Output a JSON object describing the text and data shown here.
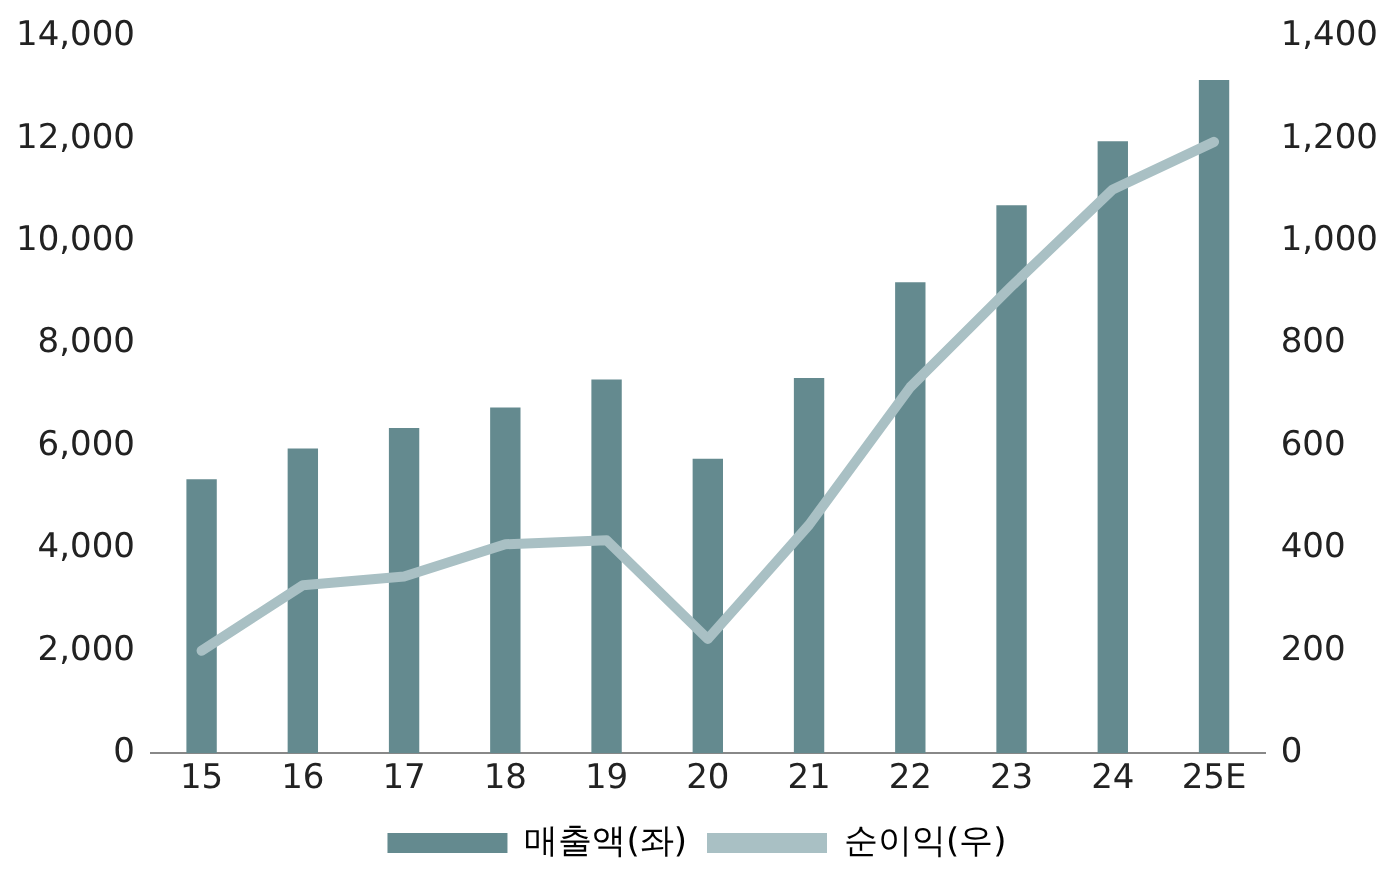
{
  "chart_data": {
    "type": "bar",
    "categories": [
      "15",
      "16",
      "17",
      "18",
      "19",
      "20",
      "21",
      "22",
      "23",
      "24",
      "25E"
    ],
    "series": [
      {
        "name": "매출액(좌)",
        "color": "#648a8f",
        "values": [
          5350,
          5950,
          6350,
          6750,
          7300,
          5750,
          7330,
          9200,
          10700,
          11950,
          13150
        ]
      },
      {
        "name": "순이익(우)",
        "type": "line",
        "axis": "y2",
        "color": "#a9c0c4",
        "values": [
          200,
          328,
          345,
          408,
          416,
          223,
          446,
          715,
          912,
          1101,
          1194
        ]
      }
    ],
    "ylim": [
      0,
      14000
    ],
    "yticks": [
      0,
      {
        "value": 2000,
        "label": "2,000"
      },
      {
        "value": 4000,
        "label": "4,000"
      },
      {
        "value": 6000,
        "label": "6,000"
      },
      {
        "value": 8000,
        "label": "8,000"
      },
      {
        "value": 10000,
        "label": "10,000"
      },
      {
        "value": 12000,
        "label": "12,000"
      },
      {
        "value": 14000,
        "label": "14,000"
      }
    ],
    "y2lim": [
      0,
      1400
    ],
    "y2ticks": [
      0,
      200,
      400,
      600,
      800,
      {
        "value": 1000,
        "label": "1,000"
      },
      {
        "value": 1200,
        "label": "1,200"
      },
      {
        "value": 1400,
        "label": "1,400"
      }
    ],
    "grid": false,
    "legend": "bottom",
    "marker": "none",
    "line_style": "solid"
  }
}
